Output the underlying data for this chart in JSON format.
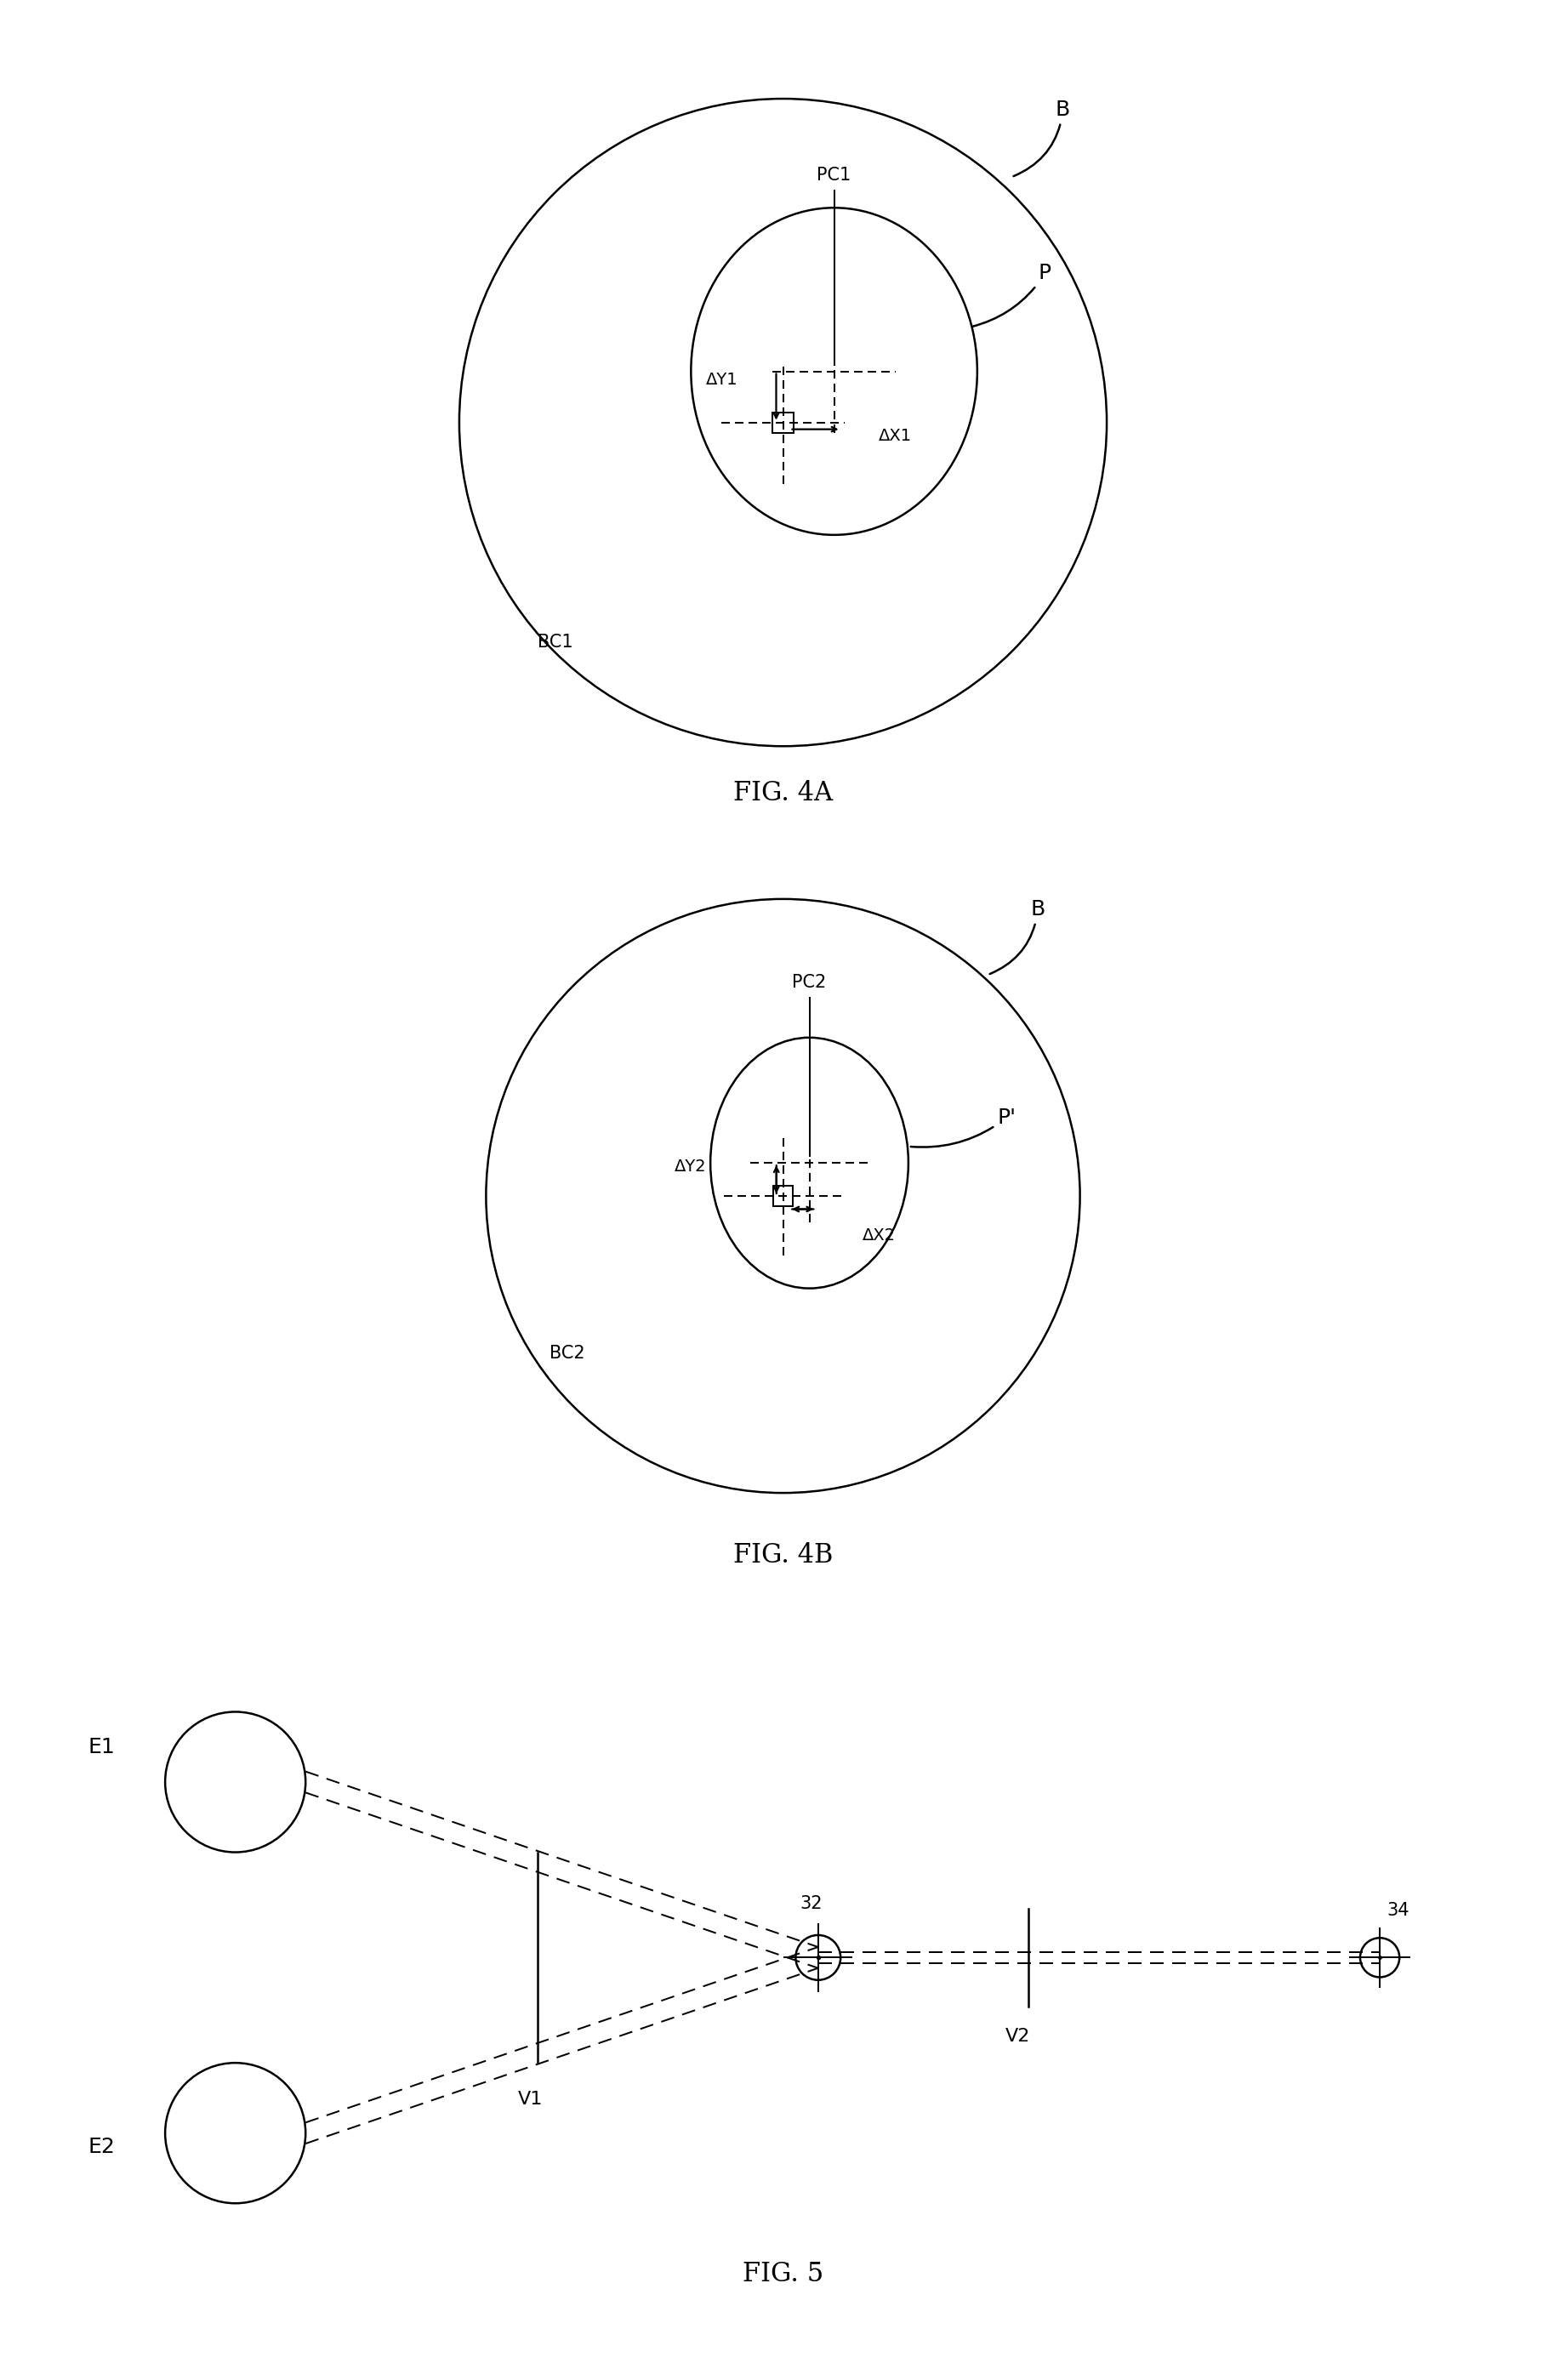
{
  "line_color": "#000000",
  "bg_color": "#ffffff",
  "lw": 1.8,
  "fig4a_title": "FIG. 4A",
  "fig4b_title": "FIG. 4B",
  "fig5_title": "FIG. 5",
  "delta_Y1": "ΔY1",
  "delta_X1": "ΔX1",
  "delta_Y2": "ΔY2",
  "delta_X2": "ΔX2",
  "PC1": "PC1",
  "PC2": "PC2",
  "BC1": "BC1",
  "BC2": "BC2",
  "B_label": "B",
  "P_label": "P",
  "Pp_label": "P'",
  "E1": "E1",
  "E2": "E2",
  "V1": "V1",
  "V2": "V2",
  "label32": "32",
  "label34": "34"
}
